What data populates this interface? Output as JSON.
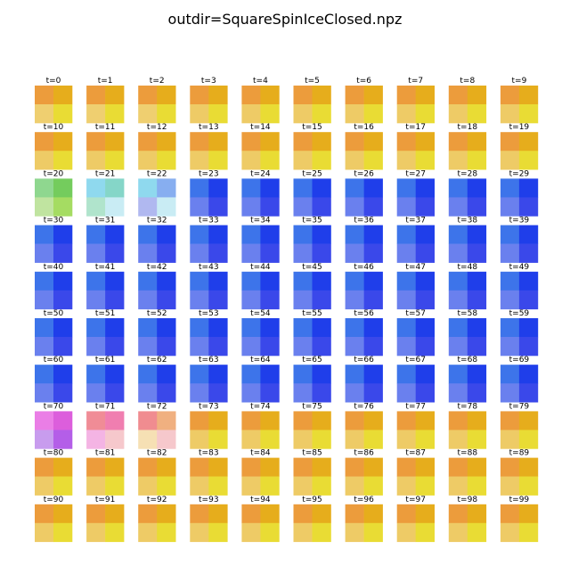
{
  "title": "outdir=SquareSpinIceClosed.npz",
  "panels": [
    {
      "label": "t=0",
      "colors": [
        "#ec9c3c",
        "#e6ad1c",
        "#efcf70",
        "#e9dc34"
      ]
    },
    {
      "label": "t=1",
      "colors": [
        "#ec9c3c",
        "#e6ad1c",
        "#efcf70",
        "#e9dc34"
      ]
    },
    {
      "label": "t=2",
      "colors": [
        "#ec9c3c",
        "#e6ad1c",
        "#efcf70",
        "#e9dc34"
      ]
    },
    {
      "label": "t=3",
      "colors": [
        "#ec9c3c",
        "#e6ad1c",
        "#eecb66",
        "#e9dc34"
      ]
    },
    {
      "label": "t=4",
      "colors": [
        "#ec9c3c",
        "#e6ad1c",
        "#eecb66",
        "#e9dc34"
      ]
    },
    {
      "label": "t=5",
      "colors": [
        "#ec9c3c",
        "#e6ad1c",
        "#eecb66",
        "#e9dc34"
      ]
    },
    {
      "label": "t=6",
      "colors": [
        "#ec9c3c",
        "#e6ad1c",
        "#eecb66",
        "#e9dc34"
      ]
    },
    {
      "label": "t=7",
      "colors": [
        "#ec9c3c",
        "#e6ad1c",
        "#eecb66",
        "#e9dc34"
      ]
    },
    {
      "label": "t=8",
      "colors": [
        "#ec9c3c",
        "#e6ad1c",
        "#eecb66",
        "#e9dc34"
      ]
    },
    {
      "label": "t=9",
      "colors": [
        "#ec9c3c",
        "#e6ad1c",
        "#eecb66",
        "#e9dc34"
      ]
    },
    {
      "label": "t=10",
      "colors": [
        "#ec9c3c",
        "#e6ad1c",
        "#eecb66",
        "#e9dc34"
      ]
    },
    {
      "label": "t=11",
      "colors": [
        "#ec9c3c",
        "#e6ad1c",
        "#eecb66",
        "#e9dc34"
      ]
    },
    {
      "label": "t=12",
      "colors": [
        "#ec9c3c",
        "#e6ad1c",
        "#eecb66",
        "#e9dc34"
      ]
    },
    {
      "label": "t=13",
      "colors": [
        "#ec9c3c",
        "#e6ad1c",
        "#eecb66",
        "#e9dc34"
      ]
    },
    {
      "label": "t=14",
      "colors": [
        "#ec9c3c",
        "#e6ad1c",
        "#eecb66",
        "#e9dc34"
      ]
    },
    {
      "label": "t=15",
      "colors": [
        "#ec9c3c",
        "#e6ad1c",
        "#eecb66",
        "#e9dc34"
      ]
    },
    {
      "label": "t=16",
      "colors": [
        "#ec9c3c",
        "#e6ad1c",
        "#eecb66",
        "#e9dc34"
      ]
    },
    {
      "label": "t=17",
      "colors": [
        "#ec9c3c",
        "#e6ad1c",
        "#eecb66",
        "#e9dc34"
      ]
    },
    {
      "label": "t=18",
      "colors": [
        "#ec9c3c",
        "#e6ad1c",
        "#eecb66",
        "#e9dc34"
      ]
    },
    {
      "label": "t=19",
      "colors": [
        "#ec9c3c",
        "#e6ad1c",
        "#eecb66",
        "#e9dc34"
      ]
    },
    {
      "label": "t=20",
      "colors": [
        "#8fd78f",
        "#74cc5d",
        "#c0e4a0",
        "#a5dc62"
      ]
    },
    {
      "label": "t=21",
      "colors": [
        "#8fd9ee",
        "#85d6c8",
        "#b0e4cc",
        "#c9ecf4"
      ]
    },
    {
      "label": "t=22",
      "colors": [
        "#8fd9ee",
        "#87aef0",
        "#b0b8f0",
        "#c9ecf4"
      ]
    },
    {
      "label": "t=23",
      "colors": [
        "#3d74ea",
        "#1f3eea",
        "#6a80ee",
        "#3a48ea"
      ]
    },
    {
      "label": "t=24",
      "colors": [
        "#3d74ea",
        "#1f3eea",
        "#6a80ee",
        "#3a48ea"
      ]
    },
    {
      "label": "t=25",
      "colors": [
        "#3d74ea",
        "#1f3eea",
        "#6a80ee",
        "#3a48ea"
      ]
    },
    {
      "label": "t=26",
      "colors": [
        "#3d74ea",
        "#1f3eea",
        "#6a80ee",
        "#3a48ea"
      ]
    },
    {
      "label": "t=27",
      "colors": [
        "#3d74ea",
        "#1f3eea",
        "#6a80ee",
        "#3a48ea"
      ]
    },
    {
      "label": "t=28",
      "colors": [
        "#3d74ea",
        "#1f3eea",
        "#6a80ee",
        "#3a48ea"
      ]
    },
    {
      "label": "t=29",
      "colors": [
        "#3d74ea",
        "#1f3eea",
        "#6a80ee",
        "#3a48ea"
      ]
    },
    {
      "label": "t=30",
      "colors": [
        "#3d74ea",
        "#1f3eea",
        "#6a80ee",
        "#3a48ea"
      ]
    },
    {
      "label": "t=31",
      "colors": [
        "#3d74ea",
        "#1f3eea",
        "#6a80ee",
        "#3a48ea"
      ]
    },
    {
      "label": "t=32",
      "colors": [
        "#3d74ea",
        "#1f3eea",
        "#6a80ee",
        "#3a48ea"
      ]
    },
    {
      "label": "t=33",
      "colors": [
        "#3d74ea",
        "#1f3eea",
        "#6a80ee",
        "#3a48ea"
      ]
    },
    {
      "label": "t=34",
      "colors": [
        "#3d74ea",
        "#1f3eea",
        "#6a80ee",
        "#3a48ea"
      ]
    },
    {
      "label": "t=35",
      "colors": [
        "#3d74ea",
        "#1f3eea",
        "#6a80ee",
        "#3a48ea"
      ]
    },
    {
      "label": "t=36",
      "colors": [
        "#3d74ea",
        "#1f3eea",
        "#6a80ee",
        "#3a48ea"
      ]
    },
    {
      "label": "t=37",
      "colors": [
        "#3d74ea",
        "#1f3eea",
        "#6a80ee",
        "#3a48ea"
      ]
    },
    {
      "label": "t=38",
      "colors": [
        "#3d74ea",
        "#1f3eea",
        "#6a80ee",
        "#3a48ea"
      ]
    },
    {
      "label": "t=39",
      "colors": [
        "#3d74ea",
        "#1f3eea",
        "#6a80ee",
        "#3a48ea"
      ]
    },
    {
      "label": "t=40",
      "colors": [
        "#3d74ea",
        "#1f3eea",
        "#6a80ee",
        "#3a48ea"
      ]
    },
    {
      "label": "t=41",
      "colors": [
        "#3d74ea",
        "#1f3eea",
        "#6a80ee",
        "#3a48ea"
      ]
    },
    {
      "label": "t=42",
      "colors": [
        "#3d74ea",
        "#1f3eea",
        "#6a80ee",
        "#3a48ea"
      ]
    },
    {
      "label": "t=43",
      "colors": [
        "#3d74ea",
        "#1f3eea",
        "#6a80ee",
        "#3a48ea"
      ]
    },
    {
      "label": "t=44",
      "colors": [
        "#3d74ea",
        "#1f3eea",
        "#6a80ee",
        "#3a48ea"
      ]
    },
    {
      "label": "t=45",
      "colors": [
        "#3d74ea",
        "#1f3eea",
        "#6a80ee",
        "#3a48ea"
      ]
    },
    {
      "label": "t=46",
      "colors": [
        "#3d74ea",
        "#1f3eea",
        "#6a80ee",
        "#3a48ea"
      ]
    },
    {
      "label": "t=47",
      "colors": [
        "#3d74ea",
        "#1f3eea",
        "#6a80ee",
        "#3a48ea"
      ]
    },
    {
      "label": "t=48",
      "colors": [
        "#3d74ea",
        "#1f3eea",
        "#6a80ee",
        "#3a48ea"
      ]
    },
    {
      "label": "t=49",
      "colors": [
        "#3d74ea",
        "#1f3eea",
        "#6a80ee",
        "#3a48ea"
      ]
    },
    {
      "label": "t=50",
      "colors": [
        "#3d74ea",
        "#1f3eea",
        "#6a80ee",
        "#3a48ea"
      ]
    },
    {
      "label": "t=51",
      "colors": [
        "#3d74ea",
        "#1f3eea",
        "#6a80ee",
        "#3a48ea"
      ]
    },
    {
      "label": "t=52",
      "colors": [
        "#3d74ea",
        "#1f3eea",
        "#6a80ee",
        "#3a48ea"
      ]
    },
    {
      "label": "t=53",
      "colors": [
        "#3d74ea",
        "#1f3eea",
        "#6a80ee",
        "#3a48ea"
      ]
    },
    {
      "label": "t=54",
      "colors": [
        "#3d74ea",
        "#1f3eea",
        "#6a80ee",
        "#3a48ea"
      ]
    },
    {
      "label": "t=55",
      "colors": [
        "#3d74ea",
        "#1f3eea",
        "#6a80ee",
        "#3a48ea"
      ]
    },
    {
      "label": "t=56",
      "colors": [
        "#3d74ea",
        "#1f3eea",
        "#6a80ee",
        "#3a48ea"
      ]
    },
    {
      "label": "t=57",
      "colors": [
        "#3d74ea",
        "#1f3eea",
        "#6a80ee",
        "#3a48ea"
      ]
    },
    {
      "label": "t=58",
      "colors": [
        "#3d74ea",
        "#1f3eea",
        "#6a80ee",
        "#3a48ea"
      ]
    },
    {
      "label": "t=59",
      "colors": [
        "#3d74ea",
        "#1f3eea",
        "#6a80ee",
        "#3a48ea"
      ]
    },
    {
      "label": "t=60",
      "colors": [
        "#3d74ea",
        "#1f3eea",
        "#6a80ee",
        "#3a48ea"
      ]
    },
    {
      "label": "t=61",
      "colors": [
        "#3d74ea",
        "#1f3eea",
        "#6a80ee",
        "#3a48ea"
      ]
    },
    {
      "label": "t=62",
      "colors": [
        "#3d74ea",
        "#1f3eea",
        "#6a80ee",
        "#3a48ea"
      ]
    },
    {
      "label": "t=63",
      "colors": [
        "#3d74ea",
        "#1f3eea",
        "#6a80ee",
        "#3a48ea"
      ]
    },
    {
      "label": "t=64",
      "colors": [
        "#3d74ea",
        "#1f3eea",
        "#6a80ee",
        "#3a48ea"
      ]
    },
    {
      "label": "t=65",
      "colors": [
        "#3d74ea",
        "#1f3eea",
        "#6a80ee",
        "#3a48ea"
      ]
    },
    {
      "label": "t=66",
      "colors": [
        "#3d74ea",
        "#1f3eea",
        "#6a80ee",
        "#3a48ea"
      ]
    },
    {
      "label": "t=67",
      "colors": [
        "#3d74ea",
        "#1f3eea",
        "#6a80ee",
        "#3a48ea"
      ]
    },
    {
      "label": "t=68",
      "colors": [
        "#3d74ea",
        "#1f3eea",
        "#6a80ee",
        "#3a48ea"
      ]
    },
    {
      "label": "t=69",
      "colors": [
        "#3d74ea",
        "#1f3eea",
        "#6a80ee",
        "#3a48ea"
      ]
    },
    {
      "label": "t=70",
      "colors": [
        "#ea7ee6",
        "#dc5edc",
        "#c89cee",
        "#b45ee8"
      ]
    },
    {
      "label": "t=71",
      "colors": [
        "#f08c96",
        "#f07eb0",
        "#f4b4e4",
        "#f6c8cc"
      ]
    },
    {
      "label": "t=72",
      "colors": [
        "#f08c90",
        "#f0b080",
        "#f6e0b4",
        "#f6c8cc"
      ]
    },
    {
      "label": "t=73",
      "colors": [
        "#ec9c3c",
        "#e6ad1c",
        "#eecb66",
        "#e9dc34"
      ]
    },
    {
      "label": "t=74",
      "colors": [
        "#ec9c3c",
        "#e6ad1c",
        "#eecb66",
        "#e9dc34"
      ]
    },
    {
      "label": "t=75",
      "colors": [
        "#ec9c3c",
        "#e6ad1c",
        "#eecb66",
        "#e9dc34"
      ]
    },
    {
      "label": "t=76",
      "colors": [
        "#ec9c3c",
        "#e6ad1c",
        "#eecb66",
        "#e9dc34"
      ]
    },
    {
      "label": "t=77",
      "colors": [
        "#ec9c3c",
        "#e6ad1c",
        "#eecb66",
        "#e9dc34"
      ]
    },
    {
      "label": "t=78",
      "colors": [
        "#ec9c3c",
        "#e6ad1c",
        "#eecb66",
        "#e9dc34"
      ]
    },
    {
      "label": "t=79",
      "colors": [
        "#ec9c3c",
        "#e6ad1c",
        "#eecb66",
        "#e9dc34"
      ]
    },
    {
      "label": "t=80",
      "colors": [
        "#ec9c3c",
        "#e6ad1c",
        "#eecb66",
        "#e9dc34"
      ]
    },
    {
      "label": "t=81",
      "colors": [
        "#ec9c3c",
        "#e6ad1c",
        "#eecb66",
        "#e9dc34"
      ]
    },
    {
      "label": "t=82",
      "colors": [
        "#ec9c3c",
        "#e6ad1c",
        "#eecb66",
        "#e9dc34"
      ]
    },
    {
      "label": "t=83",
      "colors": [
        "#ec9c3c",
        "#e6ad1c",
        "#eecb66",
        "#e9dc34"
      ]
    },
    {
      "label": "t=84",
      "colors": [
        "#ec9c3c",
        "#e6ad1c",
        "#eecb66",
        "#e9dc34"
      ]
    },
    {
      "label": "t=85",
      "colors": [
        "#ec9c3c",
        "#e6ad1c",
        "#eecb66",
        "#e9dc34"
      ]
    },
    {
      "label": "t=86",
      "colors": [
        "#ec9c3c",
        "#e6ad1c",
        "#eecb66",
        "#e9dc34"
      ]
    },
    {
      "label": "t=87",
      "colors": [
        "#ec9c3c",
        "#e6ad1c",
        "#eecb66",
        "#e9dc34"
      ]
    },
    {
      "label": "t=88",
      "colors": [
        "#ec9c3c",
        "#e6ad1c",
        "#eecb66",
        "#e9dc34"
      ]
    },
    {
      "label": "t=89",
      "colors": [
        "#ec9c3c",
        "#e6ad1c",
        "#eecb66",
        "#e9dc34"
      ]
    },
    {
      "label": "t=90",
      "colors": [
        "#ec9c3c",
        "#e6ad1c",
        "#eecb66",
        "#e9dc34"
      ]
    },
    {
      "label": "t=91",
      "colors": [
        "#ec9c3c",
        "#e6ad1c",
        "#eecb66",
        "#e9dc34"
      ]
    },
    {
      "label": "t=92",
      "colors": [
        "#ec9c3c",
        "#e6ad1c",
        "#eecb66",
        "#e9dc34"
      ]
    },
    {
      "label": "t=93",
      "colors": [
        "#ec9c3c",
        "#e6ad1c",
        "#eecb66",
        "#e9dc34"
      ]
    },
    {
      "label": "t=94",
      "colors": [
        "#ec9c3c",
        "#e6ad1c",
        "#eecb66",
        "#e9dc34"
      ]
    },
    {
      "label": "t=95",
      "colors": [
        "#ec9c3c",
        "#e6ad1c",
        "#eecb66",
        "#e9dc34"
      ]
    },
    {
      "label": "t=96",
      "colors": [
        "#ec9c3c",
        "#e6ad1c",
        "#eecb66",
        "#e9dc34"
      ]
    },
    {
      "label": "t=97",
      "colors": [
        "#ec9c3c",
        "#e6ad1c",
        "#eecb66",
        "#e9dc34"
      ]
    },
    {
      "label": "t=98",
      "colors": [
        "#ec9c3c",
        "#e6ad1c",
        "#eecb66",
        "#e9dc34"
      ]
    },
    {
      "label": "t=99",
      "colors": [
        "#ec9c3c",
        "#e6ad1c",
        "#eecb66",
        "#e9dc34"
      ]
    }
  ]
}
